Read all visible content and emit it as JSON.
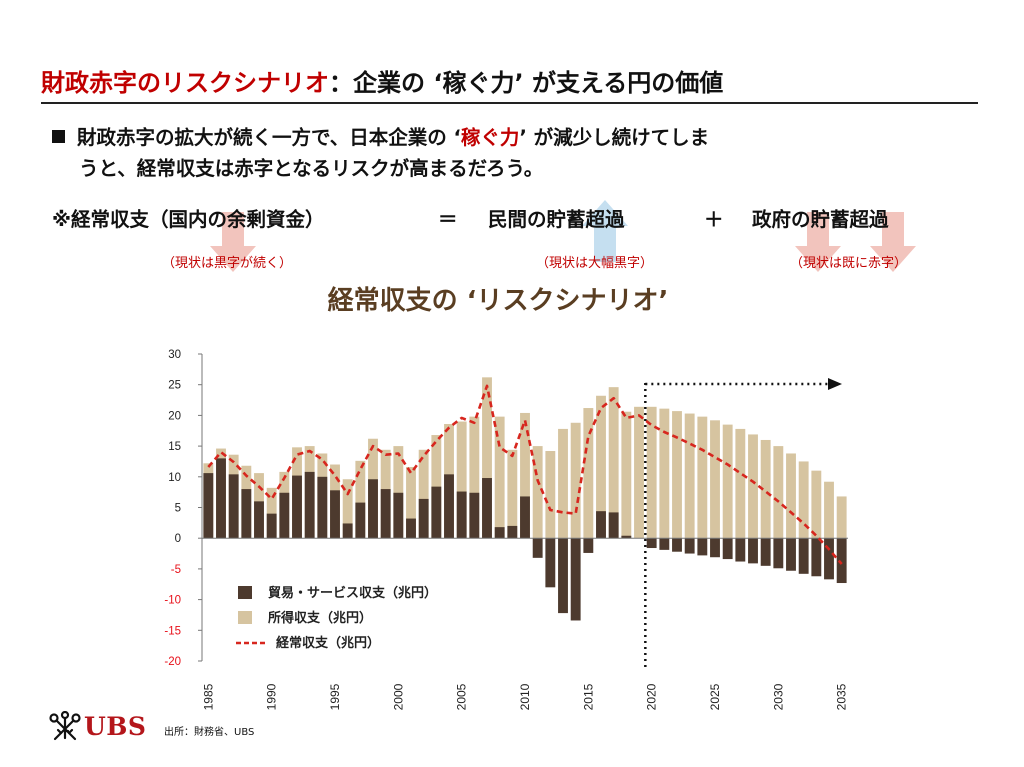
{
  "header": {
    "title_red": "財政赤字のリスクシナリオ",
    "title_rest": "：企業の ‘稼ぐ力’ が支える円の価値"
  },
  "bullet": {
    "part1": "財政赤字の拡大が続く一方で、日本企業の ‘",
    "highlight": "稼ぐ力",
    "part2": "’ が減少し続けてしま",
    "line2": "うと、経常収支は赤字となるリスクが高まるだろう。"
  },
  "equation": {
    "term1": "※経常収支（国内の余剰資金）",
    "eq_sign": "＝",
    "term2": "民間の貯蓄超過",
    "plus_sign": "＋",
    "term3": "政府の貯蓄超過",
    "note1": "（現状は黒字が続く）",
    "note2": "（現状は大幅黒字）",
    "note3": "（現状は既に赤字）"
  },
  "colors": {
    "title_red": "#c00000",
    "arrow_down": "#f2c4bd",
    "arrow_up": "#c5dff0",
    "trade_bar": "#4d3a2e",
    "income_bar": "#d6c4a0",
    "current_line": "#d7261e",
    "negative_tick": "#e8101a",
    "chart_title": "#5a3e22",
    "logo": "#b4161b"
  },
  "chart_data": {
    "type": "bar",
    "title": "経常収支の ‘リスクシナリオ’",
    "x": [
      1985,
      1986,
      1987,
      1988,
      1989,
      1990,
      1991,
      1992,
      1993,
      1994,
      1995,
      1996,
      1997,
      1998,
      1999,
      2000,
      2001,
      2002,
      2003,
      2004,
      2005,
      2006,
      2007,
      2008,
      2009,
      2010,
      2011,
      2012,
      2013,
      2014,
      2015,
      2016,
      2017,
      2018,
      2019,
      2020,
      2021,
      2022,
      2023,
      2024,
      2025,
      2026,
      2027,
      2028,
      2029,
      2030,
      2031,
      2032,
      2033,
      2034,
      2035
    ],
    "x_ticks": [
      "1985",
      "1990",
      "1995",
      "2000",
      "2005",
      "2010",
      "2015",
      "2020",
      "2025",
      "2030",
      "2035"
    ],
    "ylim": [
      -20,
      30
    ],
    "y_ticks": [
      "30",
      "25",
      "20",
      "15",
      "10",
      "5",
      "0",
      "-5",
      "-10",
      "-15",
      "-20"
    ],
    "series": [
      {
        "name": "貿易・サービス収支（兆円）",
        "kind": "bar",
        "values": [
          10.6,
          13.0,
          10.4,
          8.0,
          6.0,
          4.0,
          7.4,
          10.2,
          10.8,
          10.0,
          7.8,
          2.4,
          5.8,
          9.6,
          8.0,
          7.4,
          3.2,
          6.4,
          8.4,
          10.4,
          7.6,
          7.4,
          9.8,
          1.8,
          2.0,
          6.8,
          -3.2,
          -8.0,
          -12.2,
          -13.4,
          -2.4,
          4.4,
          4.2,
          0.4,
          0.0,
          -1.6,
          -1.9,
          -2.2,
          -2.5,
          -2.8,
          -3.1,
          -3.4,
          -3.8,
          -4.1,
          -4.5,
          -4.9,
          -5.3,
          -5.8,
          -6.2,
          -6.7,
          -7.3
        ]
      },
      {
        "name": "所得収支（兆円）",
        "kind": "bar",
        "values": [
          12.2,
          14.6,
          13.6,
          11.8,
          10.6,
          8.2,
          10.8,
          14.8,
          15.0,
          13.8,
          12.0,
          9.6,
          12.6,
          16.2,
          14.4,
          15.0,
          11.6,
          14.4,
          16.8,
          18.6,
          19.0,
          19.8,
          26.2,
          19.8,
          14.4,
          20.4,
          15.0,
          14.2,
          17.8,
          18.8,
          21.2,
          23.2,
          24.6,
          20.6,
          21.4,
          21.4,
          21.1,
          20.7,
          20.3,
          19.8,
          19.2,
          18.5,
          17.8,
          16.9,
          16.0,
          15.0,
          13.8,
          12.5,
          11.0,
          9.2,
          6.8
        ]
      },
      {
        "name": "経常収支（兆円）",
        "kind": "line",
        "values": [
          11.6,
          14.0,
          12.4,
          10.2,
          8.4,
          6.4,
          9.8,
          13.6,
          14.2,
          12.8,
          10.2,
          7.2,
          11.2,
          15.0,
          13.6,
          13.8,
          10.6,
          13.4,
          15.8,
          18.0,
          19.6,
          18.8,
          24.8,
          14.8,
          13.4,
          19.2,
          9.4,
          4.6,
          4.2,
          4.0,
          16.6,
          21.2,
          22.8,
          19.6,
          20.0,
          18.4,
          17.3,
          16.4,
          15.4,
          14.4,
          13.2,
          12.0,
          10.6,
          9.2,
          7.6,
          6.0,
          4.2,
          2.4,
          0.4,
          -1.8,
          -4.2
        ]
      }
    ],
    "legend_position": "bottom-left",
    "grid": false
  },
  "footer": {
    "logo": "UBS",
    "source": "出所：財務省、UBS"
  }
}
